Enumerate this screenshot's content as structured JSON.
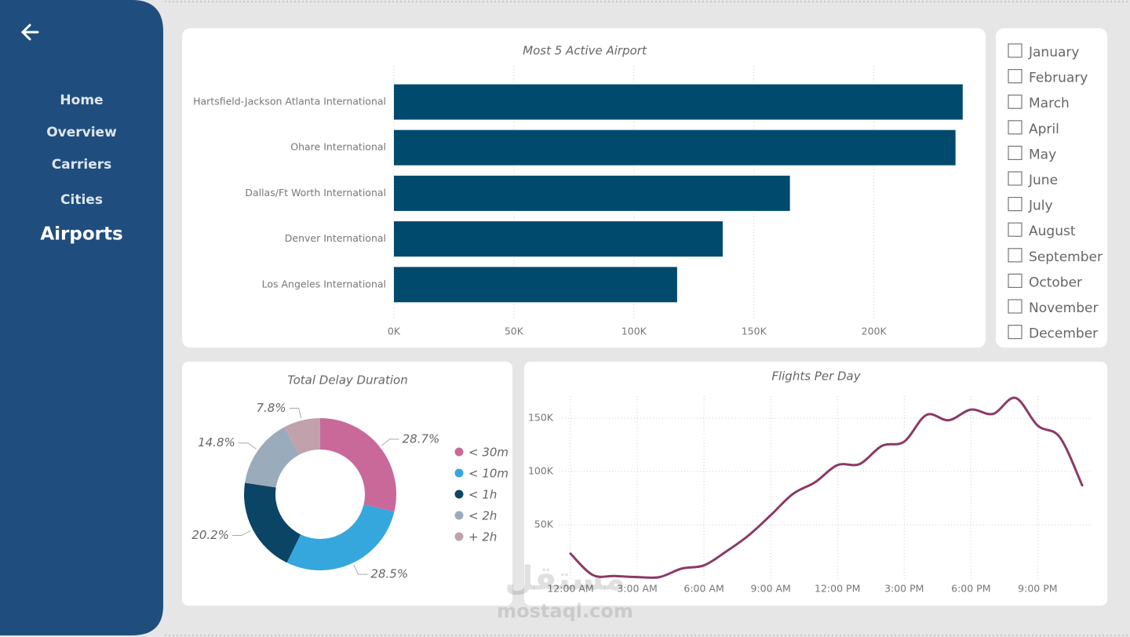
{
  "nav": {
    "items": [
      "Home",
      "Overview",
      "Carriers",
      "Cities",
      "Airports"
    ],
    "active_index": 4
  },
  "month_filter": {
    "options": [
      "January",
      "February",
      "March",
      "April",
      "May",
      "June",
      "July",
      "August",
      "September",
      "October",
      "November",
      "December"
    ]
  },
  "chart_data": [
    {
      "type": "bar",
      "orientation": "horizontal",
      "title": "Most 5 Active Airport",
      "categories": [
        "Hartsfield-Jackson Atlanta International",
        "Ohare International",
        "Dallas/Ft Worth International",
        "Denver International",
        "Los Angeles International"
      ],
      "values": [
        237000,
        234000,
        165000,
        137000,
        118000
      ],
      "color": "#004a6e",
      "xlim": [
        0,
        240000
      ],
      "xticks": [
        {
          "value": 0,
          "label": "0K"
        },
        {
          "value": 50000,
          "label": "50K"
        },
        {
          "value": 100000,
          "label": "100K"
        },
        {
          "value": 150000,
          "label": "150K"
        },
        {
          "value": 200000,
          "label": "200K"
        }
      ],
      "grid": true
    },
    {
      "type": "pie",
      "donut": true,
      "title": "Total Delay Duration",
      "categories": [
        "< 30m",
        "< 10m",
        "< 1h",
        "< 2h",
        "+ 2h"
      ],
      "values": [
        28.7,
        28.5,
        20.2,
        14.8,
        7.8
      ],
      "value_labels": [
        "28.7%",
        "28.5%",
        "20.2%",
        "14.8%",
        "7.8%"
      ],
      "colors": [
        "#c9699a",
        "#35a7dc",
        "#0b4566",
        "#9aabbc",
        "#c1a2ac"
      ]
    },
    {
      "type": "line",
      "title": "Flights Per Day",
      "categories": [
        "12:00 AM",
        null,
        null,
        "3:00 AM",
        null,
        null,
        "6:00 AM",
        null,
        null,
        "9:00 AM",
        null,
        null,
        "12:00 PM",
        null,
        null,
        "3:00 PM",
        null,
        null,
        "6:00 PM",
        null,
        null,
        "9:00 PM",
        null,
        null
      ],
      "values": [
        23000,
        3000,
        2000,
        1000,
        1000,
        9000,
        12000,
        25000,
        40000,
        59000,
        79000,
        90000,
        106000,
        107000,
        124000,
        128000,
        153000,
        148000,
        158000,
        154000,
        169000,
        143000,
        132000,
        87000
      ],
      "color": "#8b3a66",
      "ylim": [
        0,
        175000
      ],
      "yticks": [
        {
          "value": 50000,
          "label": "50K"
        },
        {
          "value": 100000,
          "label": "100K"
        },
        {
          "value": 150000,
          "label": "150K"
        }
      ],
      "grid": true
    }
  ],
  "watermark": {
    "arabic": "مستقل",
    "latin": "mostaql.com"
  }
}
